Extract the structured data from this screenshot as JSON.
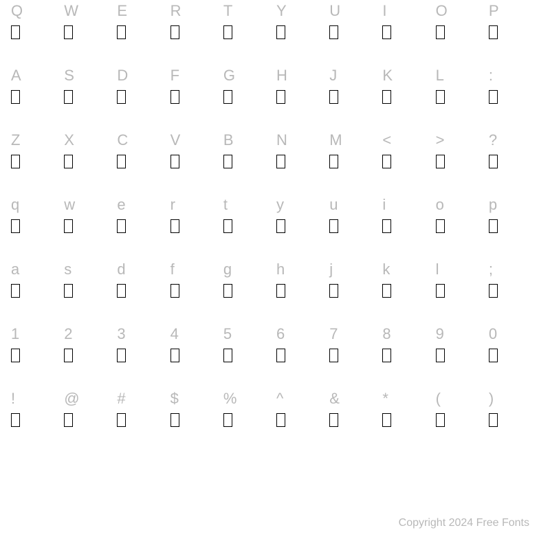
{
  "rows": [
    [
      "Q",
      "W",
      "E",
      "R",
      "T",
      "Y",
      "U",
      "I",
      "O",
      "P"
    ],
    [
      "A",
      "S",
      "D",
      "F",
      "G",
      "H",
      "J",
      "K",
      "L",
      ":"
    ],
    [
      "Z",
      "X",
      "C",
      "V",
      "B",
      "N",
      "M",
      "<",
      ">",
      "?"
    ],
    [
      "q",
      "w",
      "e",
      "r",
      "t",
      "y",
      "u",
      "i",
      "o",
      "p"
    ],
    [
      "a",
      "s",
      "d",
      "f",
      "g",
      "h",
      "j",
      "k",
      "l",
      ";"
    ],
    [
      "1",
      "2",
      "3",
      "4",
      "5",
      "6",
      "7",
      "8",
      "9",
      "0"
    ],
    [
      "!",
      "@",
      "#",
      "$",
      "%",
      "^",
      "&",
      "*",
      "(",
      ")"
    ]
  ],
  "copyright": "Copyright 2024 Free Fonts",
  "colors": {
    "label": "#b8b8b8",
    "glyph_border": "#000000",
    "background": "#ffffff"
  },
  "fontsize": {
    "label": 22,
    "copyright": 16
  },
  "glyph_box": {
    "width": 13,
    "height": 20,
    "border_width": 1.5
  }
}
